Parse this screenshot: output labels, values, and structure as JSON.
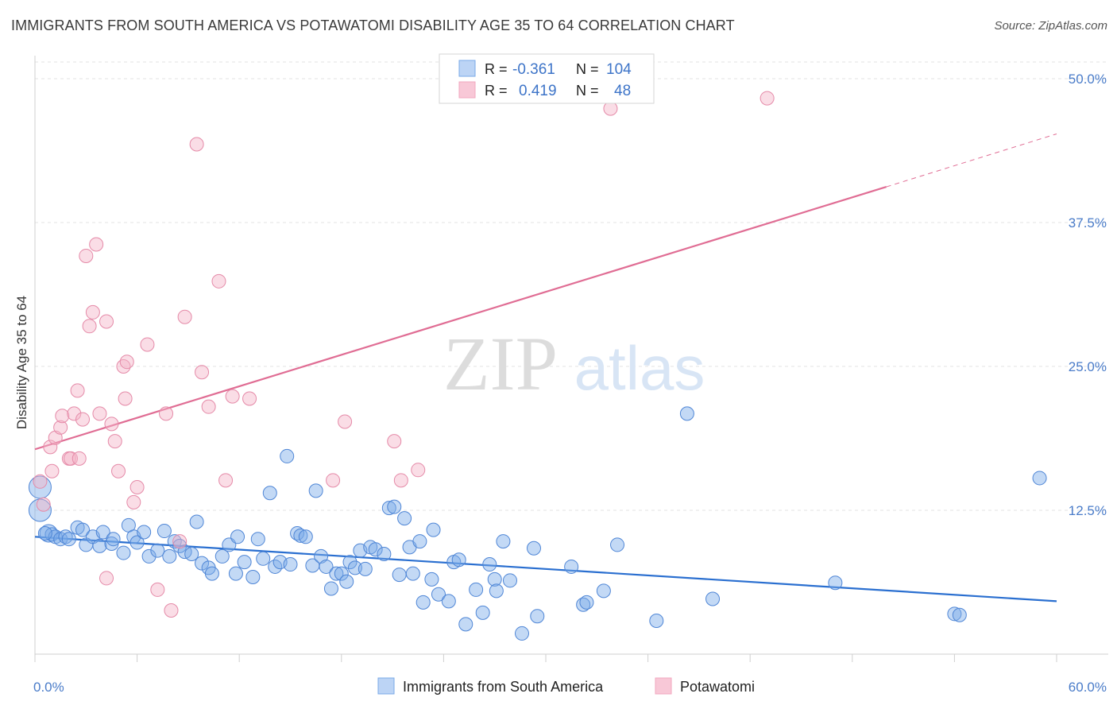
{
  "header": {
    "title": "IMMIGRANTS FROM SOUTH AMERICA VS POTAWATOMI DISABILITY AGE 35 TO 64 CORRELATION CHART",
    "source": "Source: ZipAtlas.com"
  },
  "watermark": {
    "zip": "ZIP",
    "atlas": "atlas"
  },
  "legend": {
    "r_label": "R =",
    "n_label": "N =",
    "rows": [
      {
        "r": "-0.361",
        "n": "104",
        "color": "#7aaae8"
      },
      {
        "r": "0.419",
        "n": "48",
        "color": "#f2a7bf"
      }
    ]
  },
  "chart_data": {
    "type": "scatter",
    "title": "IMMIGRANTS FROM SOUTH AMERICA VS POTAWATOMI DISABILITY AGE 35 TO 64 CORRELATION CHART",
    "xlabel": "",
    "ylabel": "Disability Age 35 to 64",
    "xlim": [
      0,
      60
    ],
    "ylim": [
      0,
      52
    ],
    "x_tick_labels": [
      "0.0%",
      "60.0%"
    ],
    "y_ticks": [
      12.5,
      25.0,
      37.5,
      50.0
    ],
    "y_tick_labels": [
      "12.5%",
      "25.0%",
      "37.5%",
      "50.0%"
    ],
    "grid": true,
    "legend_position": "top-center",
    "series": [
      {
        "name": "Immigrants from South America",
        "color": "#7aaae8",
        "stroke": "#4f86d6",
        "trend": {
          "x0": 0,
          "y0": 10.2,
          "x1": 60,
          "y1": 4.6,
          "color": "#2a6fd0"
        },
        "points": [
          [
            0.3,
            14.5,
            3
          ],
          [
            0.3,
            12.5,
            3
          ],
          [
            0.8,
            10.5,
            2
          ],
          [
            1.0,
            10.4,
            1
          ],
          [
            1.2,
            10.2,
            1
          ],
          [
            1.5,
            10.0,
            1
          ],
          [
            1.8,
            10.2,
            1
          ],
          [
            2.0,
            10.0,
            1
          ],
          [
            2.5,
            11.0,
            1
          ],
          [
            2.8,
            10.8,
            1
          ],
          [
            3.0,
            9.5,
            1
          ],
          [
            3.4,
            10.2,
            1
          ],
          [
            3.8,
            9.4,
            1
          ],
          [
            4.0,
            10.6,
            1
          ],
          [
            4.5,
            9.6,
            1
          ],
          [
            4.6,
            10.0,
            1
          ],
          [
            5.2,
            8.8,
            1
          ],
          [
            5.5,
            11.2,
            1
          ],
          [
            5.8,
            10.2,
            1
          ],
          [
            6.0,
            9.7,
            1
          ],
          [
            6.4,
            10.6,
            1
          ],
          [
            6.7,
            8.5,
            1
          ],
          [
            7.2,
            9.0,
            1
          ],
          [
            7.6,
            10.7,
            1
          ],
          [
            7.9,
            8.5,
            1
          ],
          [
            8.2,
            9.8,
            1
          ],
          [
            8.5,
            9.4,
            1
          ],
          [
            8.8,
            8.9,
            1
          ],
          [
            9.2,
            8.7,
            1
          ],
          [
            9.5,
            11.5,
            1
          ],
          [
            9.8,
            7.9,
            1
          ],
          [
            10.2,
            7.5,
            1
          ],
          [
            10.4,
            7.0,
            1
          ],
          [
            11.0,
            8.5,
            1
          ],
          [
            11.4,
            9.5,
            1
          ],
          [
            11.8,
            7.0,
            1
          ],
          [
            11.9,
            10.2,
            1
          ],
          [
            12.3,
            8.0,
            1
          ],
          [
            12.8,
            6.7,
            1
          ],
          [
            13.1,
            10.0,
            1
          ],
          [
            13.4,
            8.3,
            1
          ],
          [
            13.8,
            14.0,
            1
          ],
          [
            14.1,
            7.6,
            1
          ],
          [
            14.4,
            8.0,
            1
          ],
          [
            14.8,
            17.2,
            1
          ],
          [
            15.0,
            7.8,
            1
          ],
          [
            15.4,
            10.5,
            1
          ],
          [
            15.6,
            10.3,
            1
          ],
          [
            15.9,
            10.2,
            1
          ],
          [
            16.3,
            7.7,
            1
          ],
          [
            16.5,
            14.2,
            1
          ],
          [
            16.8,
            8.5,
            1
          ],
          [
            17.1,
            7.6,
            1
          ],
          [
            17.4,
            5.7,
            1
          ],
          [
            17.7,
            7.0,
            1
          ],
          [
            18.0,
            7.0,
            1
          ],
          [
            18.3,
            6.3,
            1
          ],
          [
            18.5,
            8.0,
            1
          ],
          [
            18.8,
            7.5,
            1
          ],
          [
            19.1,
            9.0,
            1
          ],
          [
            19.4,
            7.4,
            1
          ],
          [
            19.7,
            9.3,
            1
          ],
          [
            20.0,
            9.1,
            1
          ],
          [
            20.5,
            8.7,
            1
          ],
          [
            20.8,
            12.7,
            1
          ],
          [
            21.1,
            12.8,
            1
          ],
          [
            21.4,
            6.9,
            1
          ],
          [
            21.7,
            11.8,
            1
          ],
          [
            22.0,
            9.3,
            1
          ],
          [
            22.2,
            7.0,
            1
          ],
          [
            22.6,
            9.8,
            1
          ],
          [
            22.8,
            4.5,
            1
          ],
          [
            23.3,
            6.5,
            1
          ],
          [
            23.4,
            10.8,
            1
          ],
          [
            23.7,
            5.2,
            1
          ],
          [
            24.3,
            4.6,
            1
          ],
          [
            24.6,
            8.0,
            1
          ],
          [
            24.9,
            8.2,
            1
          ],
          [
            25.3,
            2.6,
            1
          ],
          [
            25.9,
            5.6,
            1
          ],
          [
            26.3,
            3.6,
            1
          ],
          [
            26.7,
            7.8,
            1
          ],
          [
            27.0,
            6.5,
            1
          ],
          [
            27.1,
            5.5,
            1
          ],
          [
            27.5,
            9.8,
            1
          ],
          [
            27.9,
            6.4,
            1
          ],
          [
            28.6,
            1.8,
            1
          ],
          [
            29.3,
            9.2,
            1
          ],
          [
            29.5,
            3.3,
            1
          ],
          [
            31.5,
            7.6,
            1
          ],
          [
            32.2,
            4.3,
            1
          ],
          [
            32.4,
            4.5,
            1
          ],
          [
            33.4,
            5.5,
            1
          ],
          [
            34.2,
            9.5,
            1
          ],
          [
            36.5,
            2.9,
            1
          ],
          [
            38.3,
            20.9,
            1
          ],
          [
            39.8,
            4.8,
            1
          ],
          [
            47.0,
            6.2,
            1
          ],
          [
            54.0,
            3.5,
            1
          ],
          [
            54.3,
            3.4,
            1
          ],
          [
            59.0,
            15.3,
            1
          ],
          [
            0.6,
            10.5,
            1
          ]
        ]
      },
      {
        "name": "Potawatomi",
        "color": "#f4b3c7",
        "stroke": "#e58aa8",
        "trend": {
          "x0": 0,
          "y0": 17.8,
          "x1": 50,
          "y1": 40.6,
          "x2": 60,
          "y2": 45.2,
          "color": "#e06d94"
        },
        "points": [
          [
            0.3,
            15.0,
            1
          ],
          [
            0.5,
            13.0,
            1
          ],
          [
            0.9,
            18.0,
            1
          ],
          [
            1.0,
            15.9,
            1
          ],
          [
            1.2,
            18.8,
            1
          ],
          [
            1.5,
            19.7,
            1
          ],
          [
            1.6,
            20.7,
            1
          ],
          [
            2.0,
            17.0,
            1
          ],
          [
            2.1,
            17.0,
            1
          ],
          [
            2.3,
            20.9,
            1
          ],
          [
            2.5,
            22.9,
            1
          ],
          [
            2.8,
            20.4,
            1
          ],
          [
            3.2,
            28.5,
            1
          ],
          [
            3.4,
            29.7,
            1
          ],
          [
            3.6,
            35.6,
            1
          ],
          [
            3.8,
            20.9,
            1
          ],
          [
            4.2,
            28.9,
            1
          ],
          [
            4.5,
            20.0,
            1
          ],
          [
            4.7,
            18.5,
            1
          ],
          [
            4.9,
            15.9,
            1
          ],
          [
            5.2,
            25.0,
            1
          ],
          [
            5.3,
            22.2,
            1
          ],
          [
            5.4,
            25.4,
            1
          ],
          [
            5.8,
            13.2,
            1
          ],
          [
            6.0,
            14.5,
            1
          ],
          [
            6.6,
            26.9,
            1
          ],
          [
            7.2,
            5.6,
            1
          ],
          [
            7.7,
            20.9,
            1
          ],
          [
            8.0,
            3.8,
            1
          ],
          [
            8.5,
            9.8,
            1
          ],
          [
            8.8,
            29.3,
            1
          ],
          [
            9.5,
            44.3,
            1
          ],
          [
            9.8,
            24.5,
            1
          ],
          [
            10.2,
            21.5,
            1
          ],
          [
            10.8,
            32.4,
            1
          ],
          [
            11.2,
            15.1,
            1
          ],
          [
            11.6,
            22.4,
            1
          ],
          [
            12.6,
            22.2,
            1
          ],
          [
            3.0,
            34.6,
            1
          ],
          [
            4.2,
            6.6,
            1
          ],
          [
            17.5,
            15.1,
            1
          ],
          [
            18.2,
            20.2,
            1
          ],
          [
            21.1,
            18.5,
            1
          ],
          [
            21.5,
            15.1,
            1
          ],
          [
            22.5,
            16.0,
            1
          ],
          [
            33.8,
            47.4,
            1
          ],
          [
            43.0,
            48.3,
            1
          ],
          [
            2.6,
            17.0,
            1
          ]
        ]
      }
    ]
  }
}
